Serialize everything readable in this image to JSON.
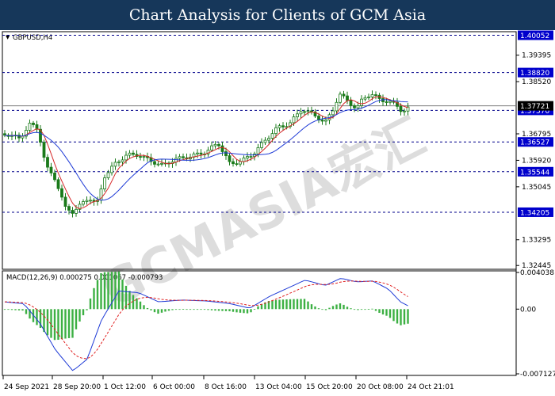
{
  "header": {
    "title": "Chart Analysis for Clients of GCM Asia"
  },
  "symbol_label": "GBPUSD,H4",
  "watermark": {
    "text": "GCMASIA宏汇"
  },
  "chart_data": [
    {
      "type": "candlestick",
      "title": "",
      "symbol": "GBPUSD,H4",
      "price_ticks": [
        "1.39395",
        "1.38520",
        "1.36795",
        "1.35920",
        "1.35045",
        "1.33295",
        "1.32445"
      ],
      "ylim": [
        1.3232,
        1.4017
      ],
      "level_lines": [
        {
          "value": 1.40052,
          "label": "1.40052"
        },
        {
          "value": 1.3882,
          "label": "1.38820"
        },
        {
          "value": 1.3757,
          "label": "1.37570"
        },
        {
          "value": 1.36527,
          "label": "1.36527"
        },
        {
          "value": 1.35544,
          "label": "1.35544"
        },
        {
          "value": 1.34205,
          "label": "1.34205"
        }
      ],
      "current_price": {
        "value": 1.3772,
        "label": "1.37721"
      },
      "time_labels": [
        "24 Sep 2021",
        "28 Sep 20:00",
        "1 Oct 12:00",
        "6 Oct 00:00",
        "8 Oct 16:00",
        "13 Oct 04:00",
        "15 Oct 20:00",
        "20 Oct 08:00",
        "24 Oct 21:01"
      ],
      "indicators": [
        "moving average (red)",
        "moving average (blue)"
      ],
      "colors": {
        "ma_fast": "#d62728",
        "ma_slow": "#1f3bd6",
        "candle": "#1a7a1a",
        "level_line": "#00008b",
        "level_box": "#0000cc"
      }
    },
    {
      "type": "bar",
      "title": "MACD(12,26,9) 0.000275 0.001067 -0.000793",
      "y_ticks": [
        "0.004038",
        "0.00",
        "-0.007127"
      ],
      "ylim": [
        -0.007127,
        0.004038
      ],
      "series": [
        "histogram (green)",
        "MACD line (blue)",
        "signal line (red dashed)"
      ],
      "colors": {
        "histogram": "#3cb043",
        "macd": "#1f3bd6",
        "signal": "#e02020"
      }
    }
  ]
}
